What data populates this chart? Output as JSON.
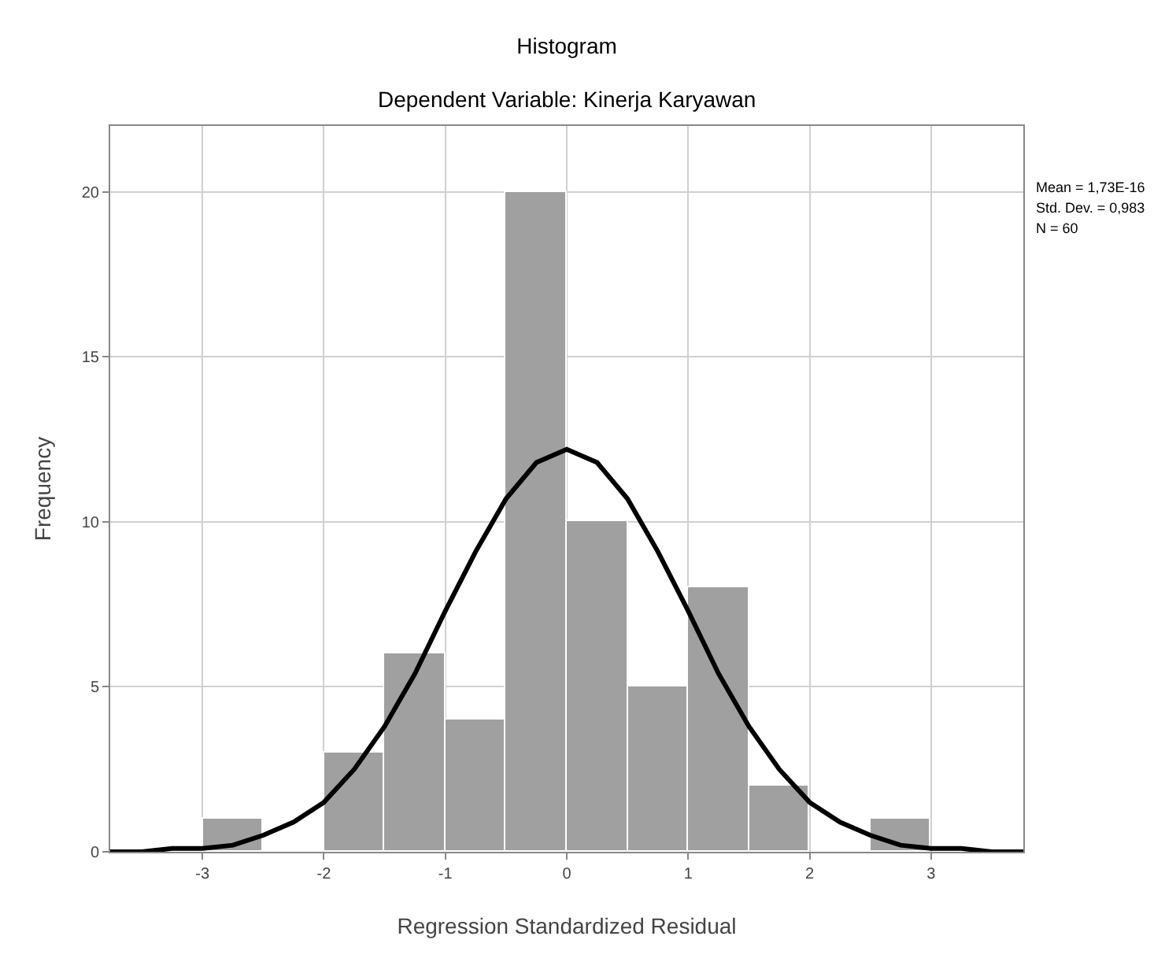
{
  "chart_data": {
    "type": "histogram",
    "title": "Histogram",
    "subtitle": "Dependent Variable: Kinerja Karyawan",
    "xlabel": "Regression Standardized Residual",
    "ylabel": "Frequency",
    "bins": [
      -3,
      -2.5,
      -2,
      -1.5,
      -1,
      -0.5,
      0,
      0.5,
      1,
      1.5,
      2,
      2.5,
      3
    ],
    "values": [
      1,
      0,
      3,
      6,
      4,
      20,
      10,
      5,
      8,
      2,
      0,
      1
    ],
    "color": "#a0a0a0",
    "series": [
      {
        "type": "line",
        "color": "#000000",
        "x": [
          -3.76,
          -3.5,
          -3.25,
          -3,
          -2.75,
          -2.5,
          -2.25,
          -2,
          -1.75,
          -1.5,
          -1.25,
          -1,
          -0.75,
          -0.5,
          -0.25,
          0,
          0.25,
          0.5,
          0.75,
          1,
          1.25,
          1.5,
          1.75,
          2,
          2.25,
          2.5,
          2.75,
          3,
          3.25,
          3.5,
          3.76
        ],
        "values": [
          0,
          0,
          0.1,
          0.1,
          0.2,
          0.5,
          0.9,
          1.5,
          2.5,
          3.8,
          5.4,
          7.3,
          9.1,
          10.7,
          11.8,
          12.2,
          11.8,
          10.7,
          9.1,
          7.3,
          5.4,
          3.8,
          2.5,
          1.5,
          0.9,
          0.5,
          0.2,
          0.1,
          0.1,
          0,
          0
        ]
      }
    ],
    "xlim": [
      -3.76,
      3.76
    ],
    "ylim": [
      0,
      22
    ],
    "xticks": [
      -3,
      -2,
      -1,
      0,
      1,
      2,
      3
    ],
    "yticks": [
      0,
      5,
      10,
      15,
      20
    ],
    "grid": true,
    "annotations": [
      "Mean = 1,73E-16",
      "Std. Dev. = 0,983",
      "N = 60"
    ]
  }
}
